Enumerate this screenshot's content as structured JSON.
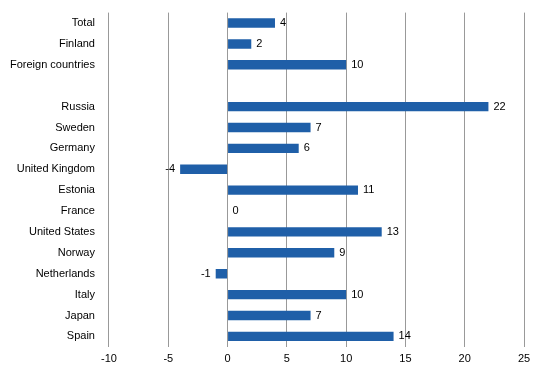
{
  "chart_data": {
    "type": "bar",
    "orientation": "horizontal",
    "categories": [
      "Total",
      "Finland",
      "Foreign countries",
      null,
      "Russia",
      "Sweden",
      "Germany",
      "United Kingdom",
      "Estonia",
      "France",
      "United States",
      "Norway",
      "Netherlands",
      "Italy",
      "Japan",
      "Spain"
    ],
    "values": [
      4,
      2,
      10,
      null,
      22,
      7,
      6,
      -4,
      11,
      0,
      13,
      9,
      -1,
      10,
      7,
      14
    ],
    "color": "#1f5fa8",
    "xlim": [
      -10,
      25
    ],
    "xticks": [
      -10,
      -5,
      0,
      5,
      10,
      15,
      20,
      25
    ],
    "grid": true,
    "data_labels": true
  }
}
